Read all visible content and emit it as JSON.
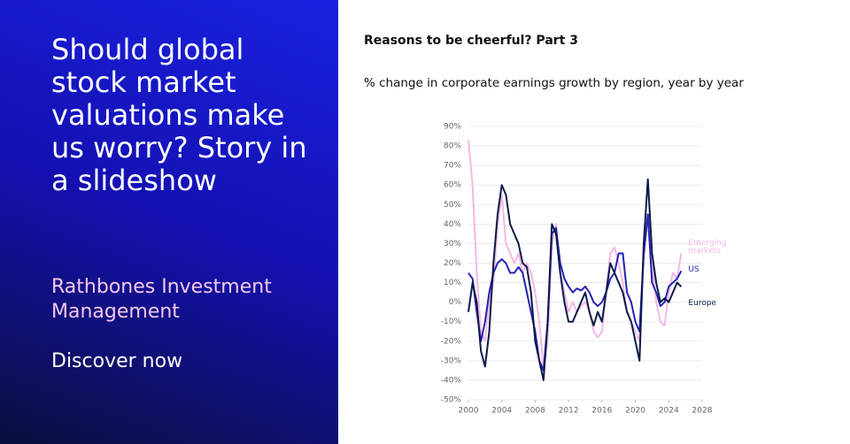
{
  "panel": {
    "headline": "Should global stock market valuations make us worry? Story in a slideshow",
    "company": "Rathbones Investment Management",
    "cta": "Discover now"
  },
  "chart_data": {
    "type": "line",
    "title": "Reasons to be cheerful? Part 3",
    "subtitle": "% change in corporate earnings growth by region, year by year",
    "x": [
      2000,
      2000.5,
      2001,
      2001.5,
      2002,
      2002.5,
      2003,
      2003.5,
      2004,
      2004.5,
      2005,
      2005.5,
      2006,
      2006.5,
      2007,
      2007.5,
      2008,
      2008.5,
      2009,
      2009.5,
      2010,
      2010.5,
      2011,
      2011.5,
      2012,
      2012.5,
      2013,
      2013.5,
      2014,
      2014.5,
      2015,
      2015.5,
      2016,
      2016.5,
      2017,
      2017.5,
      2018,
      2018.5,
      2019,
      2019.5,
      2020,
      2020.5,
      2021,
      2021.5,
      2022,
      2022.5,
      2023,
      2023.5,
      2024,
      2024.5,
      2025,
      2025.5
    ],
    "series": [
      {
        "name": "Emerging markets",
        "color": "#f4b8e4",
        "values": [
          83,
          60,
          15,
          -15,
          -20,
          0,
          10,
          40,
          55,
          30,
          25,
          20,
          25,
          15,
          20,
          15,
          5,
          -10,
          -35,
          -20,
          30,
          40,
          15,
          5,
          -5,
          0,
          -5,
          -2,
          0,
          -5,
          -15,
          -18,
          -15,
          5,
          25,
          28,
          20,
          10,
          -5,
          -10,
          -15,
          -20,
          20,
          45,
          20,
          0,
          -10,
          -12,
          5,
          15,
          12,
          25
        ]
      },
      {
        "name": "US",
        "color": "#2323b4",
        "values": [
          15,
          12,
          -5,
          -20,
          -10,
          5,
          15,
          20,
          22,
          20,
          15,
          15,
          18,
          15,
          5,
          -5,
          -15,
          -30,
          -35,
          -10,
          35,
          38,
          20,
          12,
          8,
          5,
          7,
          6,
          8,
          5,
          0,
          -2,
          0,
          5,
          12,
          15,
          25,
          25,
          5,
          0,
          -10,
          -15,
          25,
          45,
          10,
          5,
          -2,
          0,
          8,
          10,
          12,
          16
        ]
      },
      {
        "name": "Europe",
        "color": "#0b1a4a",
        "values": [
          -5,
          10,
          0,
          -25,
          -33,
          -15,
          20,
          45,
          60,
          55,
          40,
          35,
          30,
          20,
          18,
          5,
          -20,
          -30,
          -40,
          -10,
          40,
          35,
          15,
          0,
          -10,
          -10,
          -5,
          0,
          5,
          -5,
          -12,
          -5,
          -10,
          5,
          20,
          15,
          10,
          5,
          -5,
          -10,
          -20,
          -30,
          30,
          63,
          25,
          10,
          0,
          2,
          0,
          5,
          10,
          8
        ]
      }
    ],
    "xlim": [
      2000,
      2028
    ],
    "xticks": [
      2000,
      2004,
      2008,
      2012,
      2016,
      2020,
      2024,
      2028
    ],
    "ylim": [
      -50,
      90
    ],
    "yticks": [
      {
        "value": -50,
        "label": "-50%"
      },
      {
        "value": -40,
        "label": "-40%"
      },
      {
        "value": -30,
        "label": "-30%"
      },
      {
        "value": -20,
        "label": "-20%"
      },
      {
        "value": -10,
        "label": "-10%"
      },
      {
        "value": 0,
        "label": "0%"
      },
      {
        "value": 10,
        "label": "10%"
      },
      {
        "value": 20,
        "label": "20%"
      },
      {
        "value": 30,
        "label": "30%"
      },
      {
        "value": 40,
        "label": "40%"
      },
      {
        "value": 50,
        "label": "50%"
      },
      {
        "value": 60,
        "label": "60%"
      },
      {
        "value": 70,
        "label": "70%"
      },
      {
        "value": 80,
        "label": "80%"
      },
      {
        "value": 90,
        "label": "90%"
      }
    ],
    "grid": true
  }
}
